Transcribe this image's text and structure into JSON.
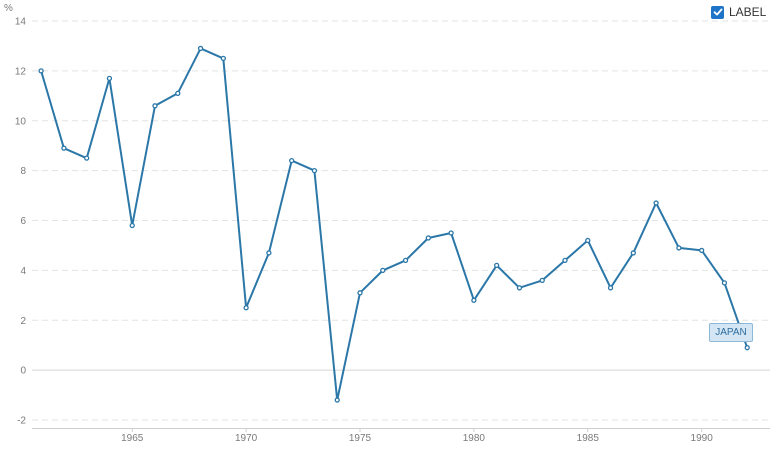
{
  "label_toggle": {
    "text": "LABEL",
    "checked": true,
    "icon": "checkmark-icon"
  },
  "chart_data": {
    "type": "line",
    "ylabel": "%",
    "ylim": [
      -2,
      14
    ],
    "xlim": [
      1960.6,
      1993
    ],
    "yticks": [
      -2,
      0,
      2,
      4,
      6,
      8,
      10,
      12,
      14
    ],
    "xticks": [
      1965,
      1970,
      1975,
      1980,
      1985,
      1990
    ],
    "grid": true,
    "series": [
      {
        "name": "JAPAN",
        "color": "#2b77a8",
        "x": [
          1961,
          1962,
          1963,
          1964,
          1965,
          1966,
          1967,
          1968,
          1969,
          1970,
          1971,
          1972,
          1973,
          1974,
          1975,
          1976,
          1977,
          1978,
          1979,
          1980,
          1981,
          1982,
          1983,
          1984,
          1985,
          1986,
          1987,
          1988,
          1989,
          1990,
          1991,
          1992
        ],
        "y": [
          12.0,
          8.9,
          8.5,
          11.7,
          5.8,
          10.6,
          11.1,
          12.9,
          12.5,
          2.5,
          4.7,
          8.4,
          8.0,
          -1.2,
          3.1,
          4.0,
          4.4,
          5.3,
          5.5,
          2.8,
          4.2,
          3.3,
          3.6,
          4.4,
          5.2,
          3.3,
          4.7,
          6.7,
          4.9,
          4.8,
          3.5,
          0.9
        ]
      }
    ]
  }
}
